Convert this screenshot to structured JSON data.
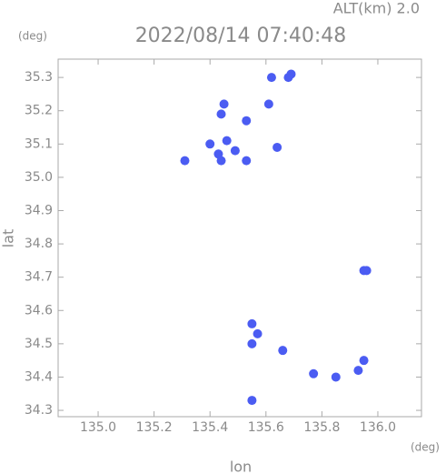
{
  "chart_data": {
    "type": "scatter",
    "title": "2022/08/14 07:40:48",
    "subtitle": "ALT(km) 2.0",
    "y_unit": "(deg)",
    "x_unit": "(deg)",
    "x_label": "lon",
    "y_label": "lat",
    "x": [
      135.62,
      135.69,
      135.68,
      135.61,
      135.44,
      135.45,
      135.53,
      135.4,
      135.43,
      135.46,
      135.44,
      135.49,
      135.53,
      135.64,
      135.31,
      135.95,
      135.96,
      135.55,
      135.57,
      135.55,
      135.66,
      135.85,
      135.95,
      135.93,
      135.77,
      135.55
    ],
    "values": [
      35.3,
      35.31,
      35.3,
      35.22,
      35.19,
      35.22,
      35.17,
      35.1,
      35.07,
      35.11,
      35.05,
      35.08,
      35.05,
      35.09,
      35.05,
      34.72,
      34.72,
      34.56,
      34.53,
      34.5,
      34.48,
      34.4,
      34.45,
      34.42,
      34.41,
      34.33
    ],
    "color": "#4b5cf2",
    "xlim": [
      134.857,
      136.156
    ],
    "ylim": [
      34.281,
      35.355
    ],
    "xticks": [
      {
        "value": 135.0,
        "label": "135.0"
      },
      135.2,
      135.4,
      135.6,
      135.8,
      {
        "value": 136.0,
        "label": "136.0"
      }
    ],
    "yticks": [
      34.3,
      34.4,
      34.5,
      34.6,
      34.7,
      34.8,
      34.9,
      {
        "value": 35.0,
        "label": "35.0"
      },
      35.1,
      35.2,
      35.3
    ]
  }
}
